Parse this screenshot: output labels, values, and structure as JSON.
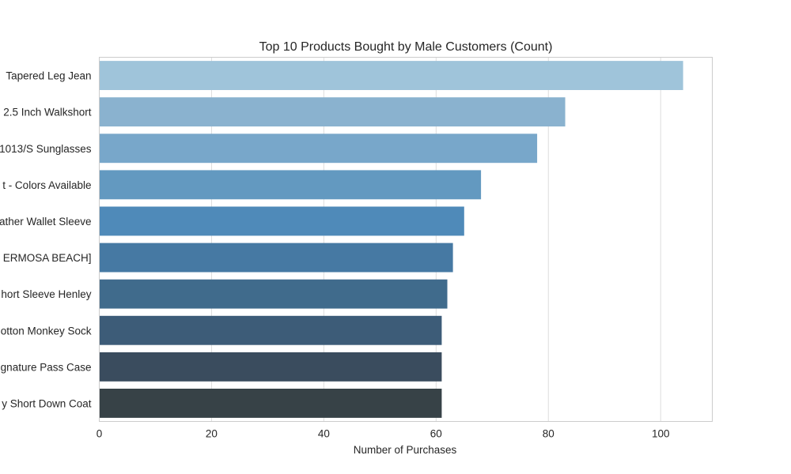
{
  "chart_data": {
    "type": "bar",
    "orientation": "horizontal",
    "title": "Top 10 Products Bought by Male Customers (Count)",
    "xlabel": "Number of Purchases",
    "ylabel": "",
    "xlim": [
      0,
      109.2
    ],
    "xticks": [
      "0",
      "20",
      "40",
      "60",
      "80",
      "100"
    ],
    "grid": "vertical",
    "categories": [
      "Tapered Leg Jean",
      "2.5 Inch Walkshort",
      "1013/S Sunglasses",
      "t - Colors Available",
      "ather Wallet Sleeve",
      "ERMOSA BEACH]",
      "hort Sleeve Henley",
      "otton Monkey Sock",
      "gnature Pass Case",
      "y Short Down Coat"
    ],
    "values": [
      104,
      83,
      78,
      68,
      65,
      63,
      62,
      61,
      61,
      61
    ],
    "colors": [
      "#9fc4da",
      "#8ab2cf",
      "#78a7ca",
      "#6399c0",
      "#4f8ab9",
      "#4679a3",
      "#406b8c",
      "#3d5c78",
      "#3a4c5e",
      "#374247"
    ]
  }
}
